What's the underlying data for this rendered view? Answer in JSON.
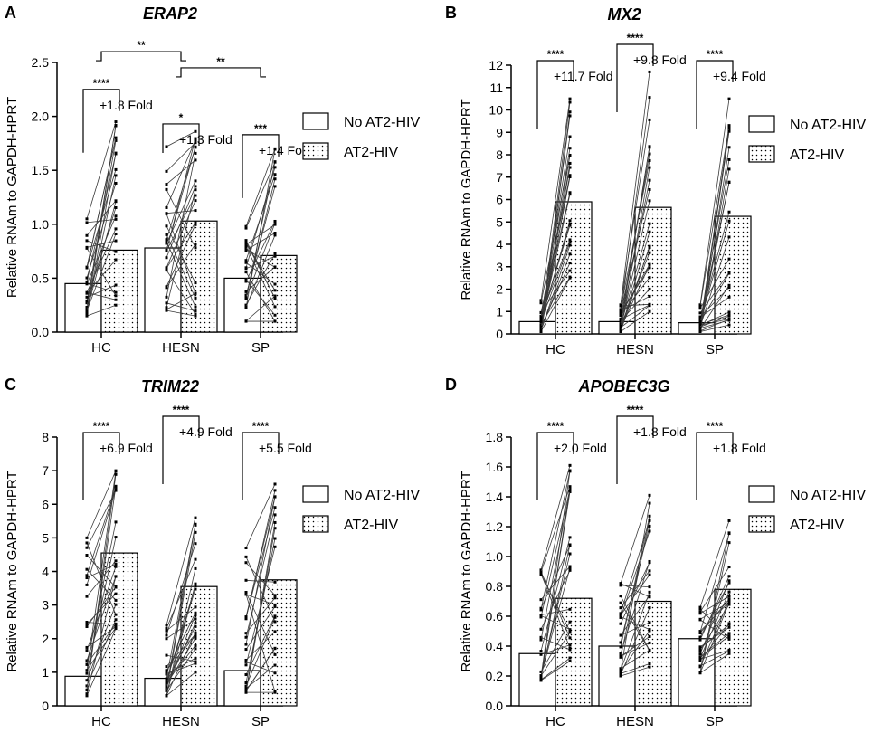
{
  "legend": {
    "no_label": "No AT2-HIV",
    "at2_label": "AT2-HIV"
  },
  "colors": {
    "axis": "#000000",
    "line": "#3a3a3a",
    "bar_fill": "#ffffff",
    "dot_pattern": "#000000"
  },
  "chart_data": [
    {
      "type": "bar",
      "letter": "A",
      "title": "ERAP2",
      "ylabel": "Relative RNAm to GAPDH-HPRT",
      "xlabel": "",
      "categories": [
        "HC",
        "HESN",
        "SP"
      ],
      "ylim": [
        0,
        2.5
      ],
      "yticks": [
        "0.0",
        "0.5",
        "1.0",
        "1.5",
        "2.0",
        "2.5"
      ],
      "yticks_values": [
        0,
        0.5,
        1.0,
        1.5,
        2.0,
        2.5
      ],
      "series": [
        {
          "name": "No AT2-HIV",
          "values": [
            0.45,
            0.78,
            0.5
          ]
        },
        {
          "name": "AT2-HIV",
          "values": [
            0.76,
            1.03,
            0.71
          ]
        }
      ],
      "paired_ranges": {
        "no": [
          [
            0.15,
            1.05
          ],
          [
            0.2,
            1.72
          ],
          [
            0.1,
            0.98
          ]
        ],
        "at2": [
          [
            0.25,
            1.95
          ],
          [
            0.15,
            1.86
          ],
          [
            0.1,
            1.7
          ]
        ]
      },
      "fold_changes": [
        "+1.8 Fold",
        "+1.3 Fold",
        "+1.4 Fold"
      ],
      "significance": [
        "****",
        "*",
        "***"
      ],
      "between_groups": [
        {
          "label": "**",
          "from": 0,
          "to": 1,
          "level": 2.6
        },
        {
          "label": "**",
          "from": 1,
          "to": 2,
          "level": 2.45
        }
      ]
    },
    {
      "type": "bar",
      "letter": "B",
      "title": "MX2",
      "ylabel": "Relative RNAm to GAPDH-HPRT",
      "xlabel": "",
      "categories": [
        "HC",
        "HESN",
        "SP"
      ],
      "ylim": [
        0,
        12
      ],
      "yticks": [
        "0",
        "1",
        "2",
        "3",
        "4",
        "5",
        "6",
        "7",
        "8",
        "9",
        "10",
        "11",
        "12"
      ],
      "yticks_values": [
        0,
        1,
        2,
        3,
        4,
        5,
        6,
        7,
        8,
        9,
        10,
        11,
        12
      ],
      "series": [
        {
          "name": "No AT2-HIV",
          "values": [
            0.55,
            0.55,
            0.5
          ]
        },
        {
          "name": "AT2-HIV",
          "values": [
            5.9,
            5.65,
            5.25
          ]
        }
      ],
      "paired_ranges": {
        "no": [
          [
            0.1,
            1.5
          ],
          [
            0.1,
            1.3
          ],
          [
            0.1,
            1.3
          ]
        ],
        "at2": [
          [
            2.5,
            10.5
          ],
          [
            1.0,
            11.7
          ],
          [
            0.4,
            10.5
          ]
        ]
      },
      "fold_changes": [
        "+11.7 Fold",
        "+9.8 Fold",
        "+9.4 Fold"
      ],
      "significance": [
        "****",
        "****",
        "****"
      ],
      "between_groups": []
    },
    {
      "type": "bar",
      "letter": "C",
      "title": "TRIM22",
      "ylabel": "Relative RNAm to GAPDH-HPRT",
      "xlabel": "",
      "categories": [
        "HC",
        "HESN",
        "SP"
      ],
      "ylim": [
        0,
        8
      ],
      "yticks": [
        "0",
        "1",
        "2",
        "3",
        "4",
        "5",
        "6",
        "7",
        "8"
      ],
      "yticks_values": [
        0,
        1,
        2,
        3,
        4,
        5,
        6,
        7,
        8
      ],
      "series": [
        {
          "name": "No AT2-HIV",
          "values": [
            0.88,
            0.82,
            1.05
          ]
        },
        {
          "name": "AT2-HIV",
          "values": [
            4.55,
            3.55,
            3.75
          ]
        }
      ],
      "paired_ranges": {
        "no": [
          [
            0.3,
            5.0
          ],
          [
            0.3,
            2.4
          ],
          [
            0.4,
            4.7
          ]
        ],
        "at2": [
          [
            2.3,
            7.0
          ],
          [
            1.0,
            5.6
          ],
          [
            0.4,
            6.6
          ]
        ]
      },
      "fold_changes": [
        "+6.9 Fold",
        "+4.9 Fold",
        "+5.5 Fold"
      ],
      "significance": [
        "****",
        "****",
        "****"
      ],
      "between_groups": []
    },
    {
      "type": "bar",
      "letter": "D",
      "title": "APOBEC3G",
      "ylabel": "Relative RNAm to GAPDH-HPRT",
      "xlabel": "",
      "categories": [
        "HC",
        "HESN",
        "SP"
      ],
      "ylim": [
        0,
        1.8
      ],
      "yticks": [
        "0.0",
        "0.2",
        "0.4",
        "0.6",
        "0.8",
        "1.0",
        "1.2",
        "1.4",
        "1.6",
        "1.8"
      ],
      "yticks_values": [
        0,
        0.2,
        0.4,
        0.6,
        0.8,
        1.0,
        1.2,
        1.4,
        1.6,
        1.8
      ],
      "series": [
        {
          "name": "No AT2-HIV",
          "values": [
            0.35,
            0.4,
            0.45
          ]
        },
        {
          "name": "AT2-HIV",
          "values": [
            0.72,
            0.7,
            0.78
          ]
        }
      ],
      "paired_ranges": {
        "no": [
          [
            0.17,
            0.91
          ],
          [
            0.2,
            0.82
          ],
          [
            0.22,
            0.66
          ]
        ],
        "at2": [
          [
            0.3,
            1.61
          ],
          [
            0.26,
            1.41
          ],
          [
            0.35,
            1.24
          ]
        ]
      },
      "fold_changes": [
        "+2.0 Fold",
        "+1.8 Fold",
        "+1.8 Fold"
      ],
      "significance": [
        "****",
        "****",
        "****"
      ],
      "between_groups": []
    }
  ]
}
